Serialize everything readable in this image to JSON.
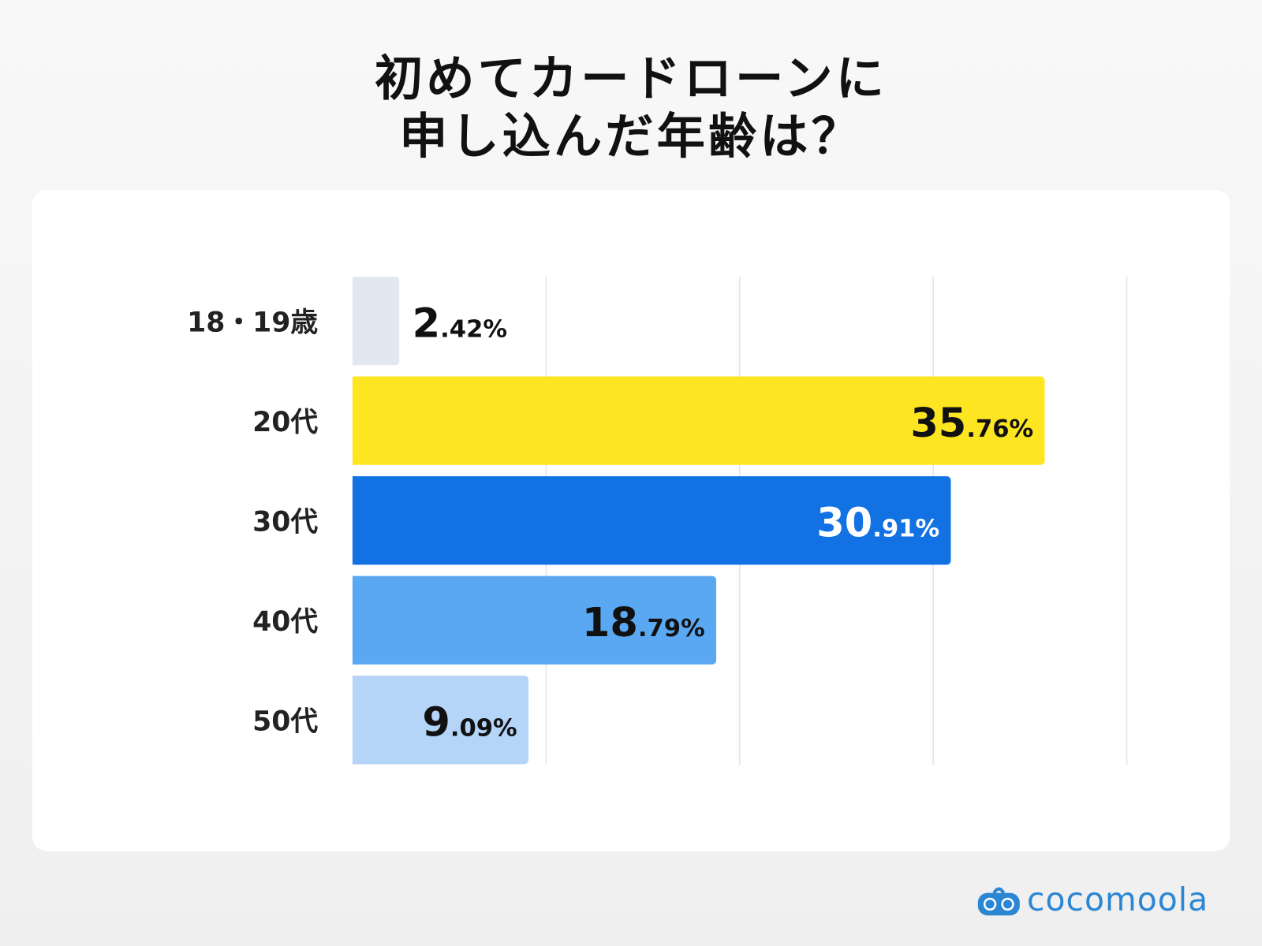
{
  "chart_data": {
    "type": "bar",
    "orientation": "horizontal",
    "title": [
      "初めてカードローンに",
      "申し込んだ年齢は？"
    ],
    "categories": [
      "18・19歳",
      "20代",
      "30代",
      "40代",
      "50代"
    ],
    "values": [
      2.42,
      35.76,
      30.91,
      18.79,
      9.09
    ],
    "unit": "%",
    "xlim": [
      0,
      40
    ],
    "grid": true,
    "colors": [
      "#e3e8f0",
      "#fde522",
      "#1272e3",
      "#5ba8f2",
      "#b5d5f8"
    ],
    "label_colors": [
      "#111111",
      "#111111",
      "#ffffff",
      "#111111",
      "#111111"
    ]
  },
  "brand": {
    "name": "cocomoola",
    "color": "#2b86d4"
  }
}
